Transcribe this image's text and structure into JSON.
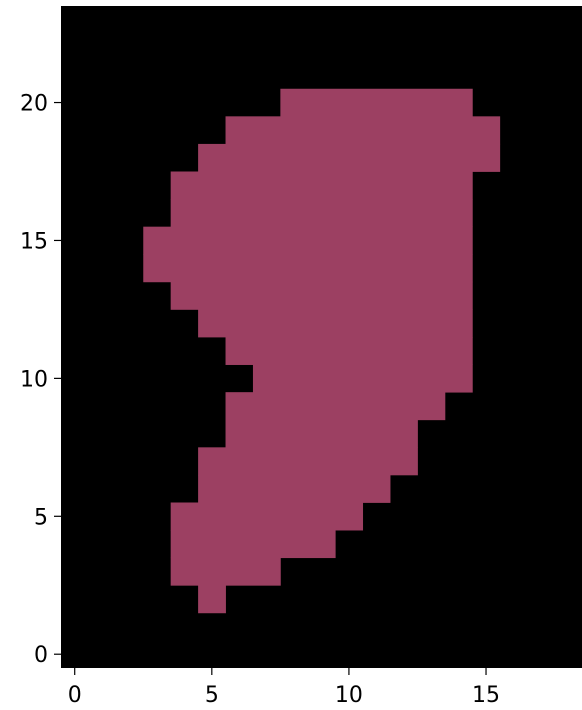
{
  "chart_data": {
    "type": "heatmap",
    "title": "",
    "xlabel": "",
    "ylabel": "",
    "xlim": [
      -0.5,
      18.5
    ],
    "ylim": [
      -0.5,
      23.5
    ],
    "grid": false,
    "legend": "none",
    "x_ticks": [
      0,
      5,
      10,
      15
    ],
    "x_tick_labels": [
      "0",
      "5",
      "10",
      "15"
    ],
    "y_ticks": [
      0,
      5,
      10,
      15,
      20
    ],
    "y_tick_labels": [
      "0",
      "5",
      "10",
      "15",
      "20"
    ],
    "colors": {
      "background": "#000000",
      "fill": "#9c4062",
      "text": "#000000"
    },
    "filled_cell_runs": [
      {
        "y": 2,
        "x_from": 5,
        "x_to": 5
      },
      {
        "y": 3,
        "x_from": 4,
        "x_to": 7
      },
      {
        "y": 4,
        "x_from": 4,
        "x_to": 9
      },
      {
        "y": 5,
        "x_from": 4,
        "x_to": 10
      },
      {
        "y": 6,
        "x_from": 5,
        "x_to": 11
      },
      {
        "y": 7,
        "x_from": 5,
        "x_to": 12
      },
      {
        "y": 8,
        "x_from": 6,
        "x_to": 12
      },
      {
        "y": 9,
        "x_from": 6,
        "x_to": 13
      },
      {
        "y": 10,
        "x_from": 7,
        "x_to": 14
      },
      {
        "y": 11,
        "x_from": 6,
        "x_to": 14
      },
      {
        "y": 12,
        "x_from": 5,
        "x_to": 14
      },
      {
        "y": 13,
        "x_from": 4,
        "x_to": 14
      },
      {
        "y": 14,
        "x_from": 3,
        "x_to": 14
      },
      {
        "y": 15,
        "x_from": 3,
        "x_to": 14
      },
      {
        "y": 16,
        "x_from": 4,
        "x_to": 14
      },
      {
        "y": 17,
        "x_from": 4,
        "x_to": 14
      },
      {
        "y": 18,
        "x_from": 5,
        "x_to": 15
      },
      {
        "y": 19,
        "x_from": 6,
        "x_to": 15
      },
      {
        "y": 20,
        "x_from": 8,
        "x_to": 14
      }
    ]
  }
}
